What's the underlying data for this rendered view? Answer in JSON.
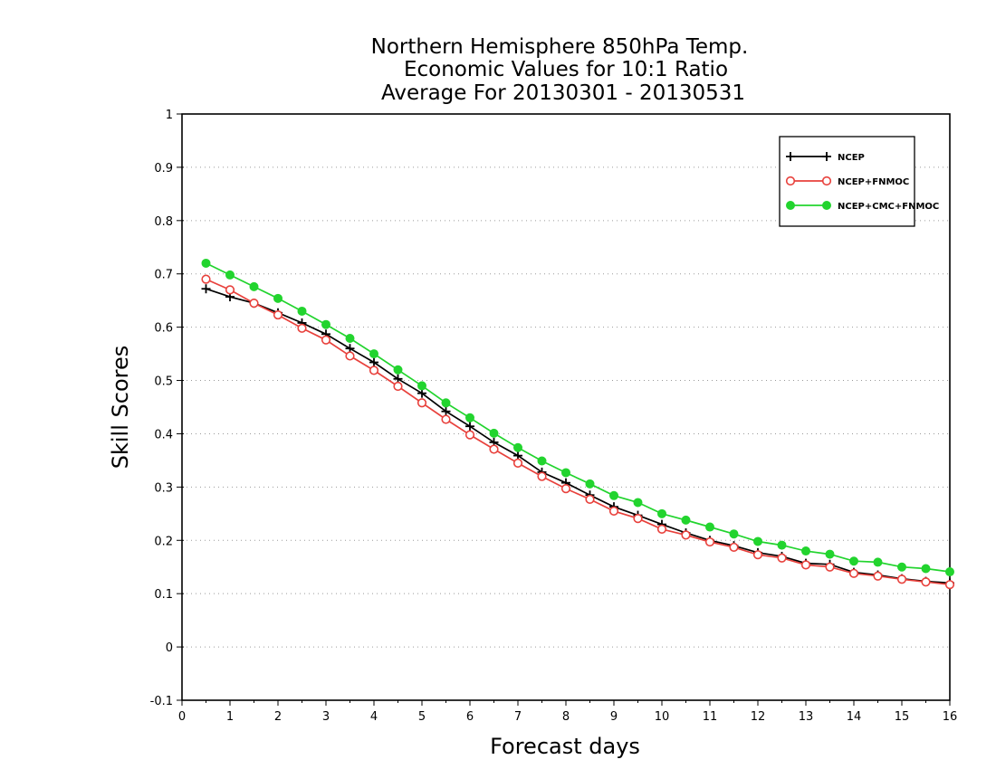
{
  "chart_data": {
    "type": "line",
    "title_lines": [
      "Northern Hemisphere 850hPa Temp.",
      "Economic Values for 10:1 Ratio",
      "Average For 20130301 - 20130531"
    ],
    "xlabel": "Forecast days",
    "ylabel": "Skill Scores",
    "xlim": [
      0,
      16
    ],
    "ylim": [
      -0.1,
      1
    ],
    "x_ticks": [
      0,
      1,
      2,
      3,
      4,
      5,
      6,
      7,
      8,
      9,
      10,
      11,
      12,
      13,
      14,
      15,
      16
    ],
    "x_tick_labels": [
      "0",
      "1",
      "2",
      "3",
      "4",
      "5",
      "6",
      "7",
      "8",
      "9",
      "10",
      "11",
      "12",
      "13",
      "14",
      "15",
      "16"
    ],
    "y_ticks": [
      -0.1,
      0,
      0.1,
      0.2,
      0.3,
      0.4,
      0.5,
      0.6,
      0.7,
      0.8,
      0.9,
      1
    ],
    "y_tick_labels": [
      "-0.1",
      "0",
      "0.1",
      "0.2",
      "0.3",
      "0.4",
      "0.5",
      "0.6",
      "0.7",
      "0.8",
      "0.9",
      "1"
    ],
    "grid": "horizontal dotted",
    "legend_position": "top-right",
    "x": [
      0.5,
      1,
      1.5,
      2,
      2.5,
      3,
      3.5,
      4,
      4.5,
      5,
      5.5,
      6,
      6.5,
      7,
      7.5,
      8,
      8.5,
      9,
      9.5,
      10,
      10.5,
      11,
      11.5,
      12,
      12.5,
      13,
      13.5,
      14,
      14.5,
      15,
      15.5,
      16
    ],
    "series": [
      {
        "name": "NCEP",
        "color": "#000000",
        "marker": "plus",
        "values": [
          0.672,
          0.657,
          0.645,
          0.627,
          0.608,
          0.587,
          0.56,
          0.534,
          0.503,
          0.476,
          0.442,
          0.414,
          0.384,
          0.359,
          0.328,
          0.308,
          0.285,
          0.263,
          0.247,
          0.23,
          0.214,
          0.2,
          0.19,
          0.177,
          0.17,
          0.157,
          0.155,
          0.14,
          0.135,
          0.128,
          0.123,
          0.12
        ]
      },
      {
        "name": "NCEP+FNMOC",
        "color": "#e8413c",
        "marker": "open-circle",
        "values": [
          0.69,
          0.67,
          0.645,
          0.623,
          0.598,
          0.576,
          0.546,
          0.519,
          0.489,
          0.458,
          0.427,
          0.398,
          0.371,
          0.345,
          0.32,
          0.297,
          0.277,
          0.255,
          0.241,
          0.221,
          0.21,
          0.197,
          0.187,
          0.173,
          0.167,
          0.154,
          0.15,
          0.138,
          0.133,
          0.127,
          0.122,
          0.117
        ]
      },
      {
        "name": "NCEP+CMC+FNMOC",
        "color": "#22d42e",
        "marker": "filled-circle",
        "values": [
          0.72,
          0.698,
          0.676,
          0.654,
          0.63,
          0.605,
          0.579,
          0.55,
          0.52,
          0.49,
          0.458,
          0.43,
          0.401,
          0.374,
          0.349,
          0.327,
          0.306,
          0.284,
          0.271,
          0.25,
          0.238,
          0.225,
          0.212,
          0.198,
          0.191,
          0.18,
          0.174,
          0.161,
          0.159,
          0.15,
          0.147,
          0.141
        ]
      }
    ]
  }
}
